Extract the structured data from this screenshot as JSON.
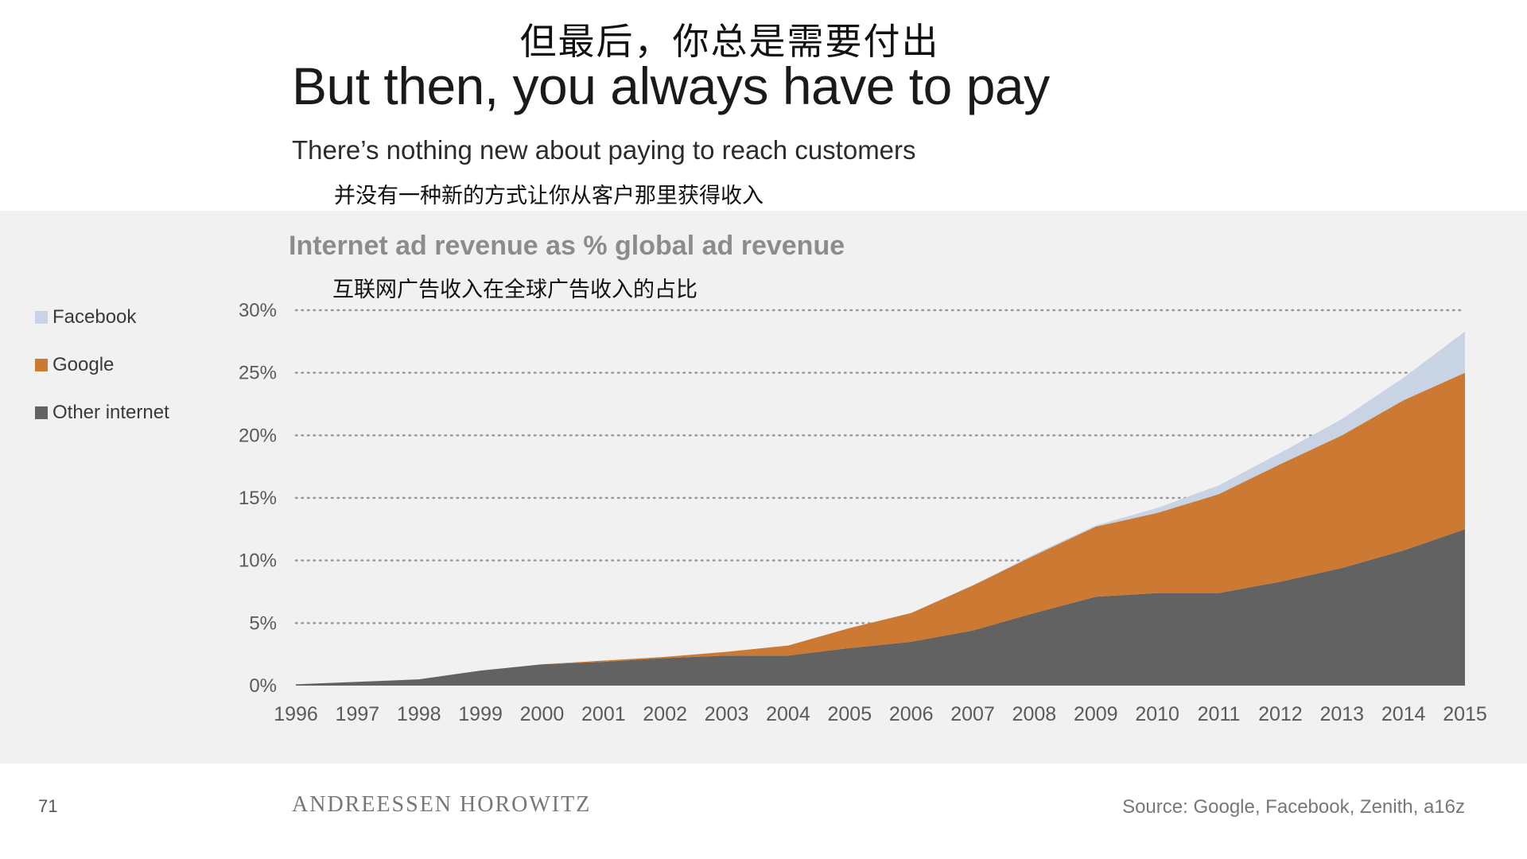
{
  "slide": {
    "title_cn": "但最后，你总是需要付出",
    "title_en": "But then, you always have to pay",
    "subtitle_en": "There’s nothing new about paying to reach customers",
    "subtitle_cn": "并没有一种新的方式让你从客户那里获得收入",
    "page_number": "71",
    "brand": "ANDREESSEN HOROWITZ",
    "source": "Source: Google, Facebook, Zenith, a16z"
  },
  "colors": {
    "facebook": "#c8d3e3",
    "google": "#cc7a33",
    "other": "#626262",
    "panel": "#f1f1f1",
    "grid": "#9a9a9a",
    "axis_text": "#5a5a5a"
  },
  "chart_data": {
    "type": "area",
    "stacked": true,
    "title": "Internet ad revenue as % global ad revenue",
    "title_cn": "互联网广告收入在全球广告收入的占比",
    "x": [
      "1996",
      "1997",
      "1998",
      "1999",
      "2000",
      "2001",
      "2002",
      "2003",
      "2004",
      "2005",
      "2006",
      "2007",
      "2008",
      "2009",
      "2010",
      "2011",
      "2012",
      "2013",
      "2014",
      "2015"
    ],
    "x_tick_labels": [
      "1996",
      "1997",
      "1998",
      "1999",
      "2000",
      "2001",
      "2002",
      "2003",
      "2004",
      "2005",
      "2006",
      "2007",
      "2008",
      "2009",
      "2010",
      "2011",
      "2012",
      "2013",
      "2014",
      "2015"
    ],
    "y_ticks": [
      0,
      5,
      10,
      15,
      20,
      25,
      30
    ],
    "y_tick_labels": [
      "0%",
      "5%",
      "10%",
      "15%",
      "20%",
      "25%",
      "30%"
    ],
    "ylim": [
      0,
      30
    ],
    "grid": "horizontal-dotted",
    "legend_position": "left",
    "series": [
      {
        "name": "Other internet",
        "color_key": "other",
        "values": [
          0.1,
          0.3,
          0.5,
          1.2,
          1.7,
          1.9,
          2.2,
          2.4,
          2.4,
          3.0,
          3.5,
          4.4,
          5.8,
          7.1,
          7.4,
          7.4,
          8.3,
          9.4,
          10.8,
          12.5
        ]
      },
      {
        "name": "Google",
        "color_key": "google",
        "values": [
          0.0,
          0.0,
          0.0,
          0.0,
          0.0,
          0.1,
          0.1,
          0.3,
          0.8,
          1.6,
          2.3,
          3.6,
          4.6,
          5.6,
          6.4,
          7.9,
          9.4,
          10.6,
          12.0,
          12.5
        ]
      },
      {
        "name": "Facebook",
        "color_key": "facebook",
        "values": [
          0.0,
          0.0,
          0.0,
          0.0,
          0.0,
          0.0,
          0.0,
          0.0,
          0.0,
          0.0,
          0.0,
          0.0,
          0.1,
          0.1,
          0.4,
          0.7,
          0.9,
          1.3,
          1.8,
          3.3
        ]
      }
    ],
    "legend_order": [
      "Facebook",
      "Google",
      "Other internet"
    ]
  }
}
